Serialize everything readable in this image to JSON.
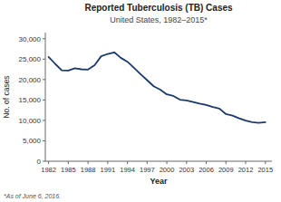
{
  "chart_data": {
    "type": "line",
    "title": "Reported Tuberculosis (TB) Cases",
    "subtitle": "United States, 1982–2015*",
    "x_label": "Year",
    "y_label": "No. of cases",
    "annotations": [
      "*As of June 6, 2016."
    ],
    "x": [
      1982,
      1983,
      1984,
      1985,
      1986,
      1987,
      1988,
      1989,
      1990,
      1991,
      1992,
      1993,
      1994,
      1995,
      1996,
      1997,
      1998,
      1999,
      2000,
      2001,
      2002,
      2003,
      2004,
      2005,
      2006,
      2007,
      2008,
      2009,
      2010,
      2011,
      2012,
      2013,
      2014,
      2015
    ],
    "series": [
      {
        "color": "#1a3a6b",
        "values": [
          25520,
          23846,
          22255,
          22201,
          22768,
          22517,
          22436,
          23495,
          25701,
          26283,
          26673,
          25313,
          24361,
          22860,
          21337,
          19855,
          18361,
          17531,
          16377,
          15989,
          15078,
          14874,
          14517,
          14097,
          13779,
          13293,
          12898,
          11545,
          11182,
          10521,
          9945,
          9582,
          9412,
          9557
        ]
      }
    ],
    "xlim": [
      1981.5,
      2016
    ],
    "xticks": [
      1982,
      1985,
      1988,
      1991,
      1994,
      1997,
      2000,
      2003,
      2006,
      2009,
      2012,
      2015
    ],
    "ylim": [
      0,
      31500
    ],
    "yticks": [
      0,
      {
        "value": 5000,
        "label": "5,000"
      },
      {
        "value": 10000,
        "label": "10,000"
      },
      {
        "value": 15000,
        "label": "15,000"
      },
      {
        "value": 20000,
        "label": "20,000"
      },
      {
        "value": 25000,
        "label": "25,000"
      },
      {
        "value": 30000,
        "label": "30,000"
      }
    ],
    "grid": false
  }
}
